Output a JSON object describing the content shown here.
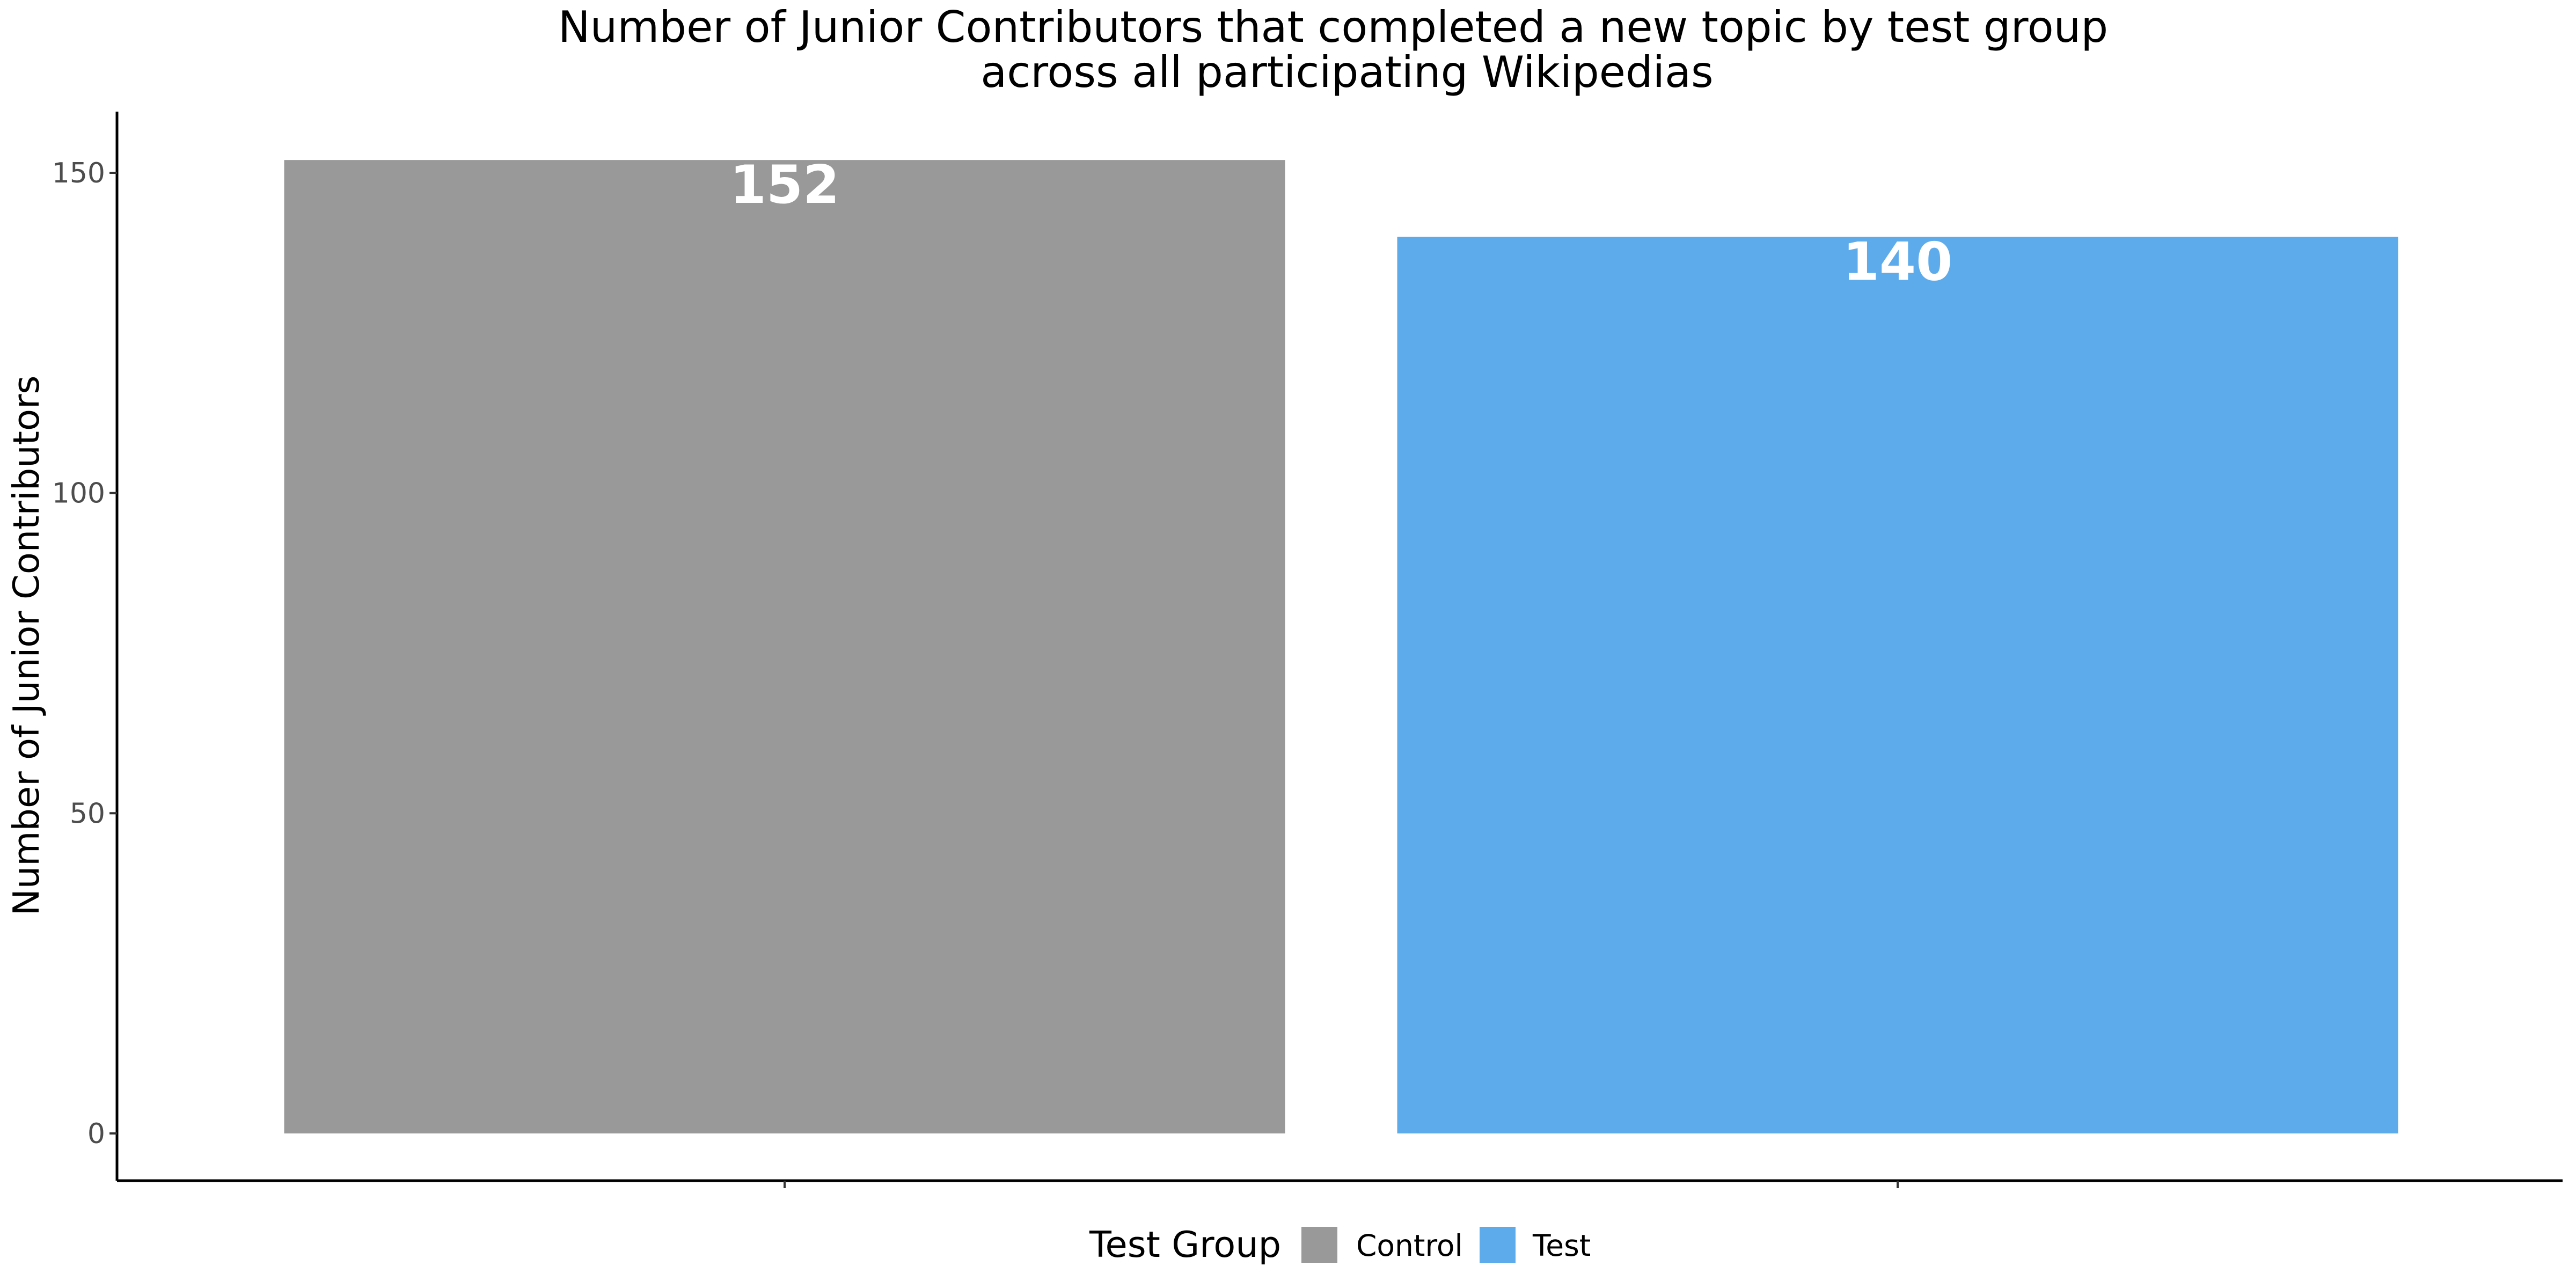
{
  "chart_data": {
    "type": "bar",
    "title_lines": [
      "Number of Junior Contributors that completed a new topic by test group",
      "across all participating Wikipedias"
    ],
    "xlabel": "",
    "ylabel": "Number of Junior Contributors",
    "categories": [
      "Control",
      "Test"
    ],
    "values": [
      152,
      140
    ],
    "data_labels": [
      "152",
      "140"
    ],
    "colors": [
      "#999999",
      "#5dabeb"
    ],
    "ylim": [
      0,
      160
    ],
    "y_ticks": [
      0,
      50,
      100,
      150
    ],
    "y_tick_labels": [
      "0",
      "50",
      "100",
      "150"
    ],
    "grid": false,
    "legend": {
      "title": "Test Group",
      "position": "bottom",
      "entries": [
        {
          "label": "Control",
          "color": "#999999"
        },
        {
          "label": "Test",
          "color": "#5dabeb"
        }
      ]
    }
  }
}
